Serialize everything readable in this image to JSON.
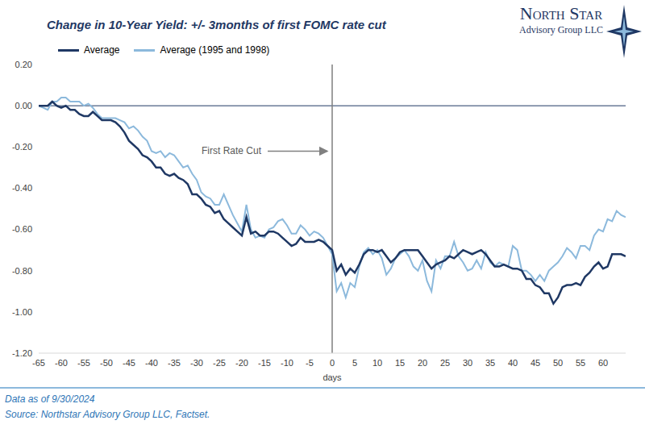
{
  "chart_data": {
    "type": "line",
    "title": "Change in 10-Year Yield: +/- 3months of first FOMC rate cut",
    "x_label": "days",
    "x": [
      -65,
      -64,
      -63,
      -62,
      -61,
      -60,
      -59,
      -58,
      -57,
      -56,
      -55,
      -54,
      -53,
      -52,
      -51,
      -50,
      -49,
      -48,
      -47,
      -46,
      -45,
      -44,
      -43,
      -42,
      -41,
      -40,
      -39,
      -38,
      -37,
      -36,
      -35,
      -34,
      -33,
      -32,
      -31,
      -30,
      -29,
      -28,
      -27,
      -26,
      -25,
      -24,
      -23,
      -22,
      -21,
      -20,
      -19,
      -18,
      -17,
      -16,
      -15,
      -14,
      -13,
      -12,
      -11,
      -10,
      -9,
      -8,
      -7,
      -6,
      -5,
      -4,
      -3,
      -2,
      -1,
      0,
      1,
      2,
      3,
      4,
      5,
      6,
      7,
      8,
      9,
      10,
      11,
      12,
      13,
      14,
      15,
      16,
      17,
      18,
      19,
      20,
      21,
      22,
      23,
      24,
      25,
      26,
      27,
      28,
      29,
      30,
      31,
      32,
      33,
      34,
      35,
      36,
      37,
      38,
      39,
      40,
      41,
      42,
      43,
      44,
      45,
      46,
      47,
      48,
      49,
      50,
      51,
      52,
      53,
      54,
      55,
      56,
      57,
      58,
      59,
      60,
      61,
      62,
      63,
      64,
      65
    ],
    "series": [
      {
        "name": "Average",
        "color": "#1f3864",
        "marker": "none",
        "line_style": "solid",
        "values": [
          0,
          0,
          0,
          0.02,
          0,
          -0.01,
          0,
          -0.02,
          -0.02,
          -0.04,
          -0.05,
          -0.05,
          -0.03,
          -0.05,
          -0.07,
          -0.07,
          -0.07,
          -0.08,
          -0.1,
          -0.13,
          -0.17,
          -0.19,
          -0.21,
          -0.24,
          -0.25,
          -0.27,
          -0.3,
          -0.3,
          -0.33,
          -0.34,
          -0.33,
          -0.35,
          -0.36,
          -0.38,
          -0.43,
          -0.43,
          -0.45,
          -0.48,
          -0.49,
          -0.52,
          -0.51,
          -0.55,
          -0.57,
          -0.59,
          -0.61,
          -0.63,
          -0.54,
          -0.62,
          -0.61,
          -0.63,
          -0.63,
          -0.61,
          -0.61,
          -0.62,
          -0.64,
          -0.66,
          -0.68,
          -0.67,
          -0.64,
          -0.66,
          -0.66,
          -0.66,
          -0.65,
          -0.66,
          -0.68,
          -0.7,
          -0.8,
          -0.77,
          -0.82,
          -0.79,
          -0.81,
          -0.77,
          -0.72,
          -0.7,
          -0.7,
          -0.71,
          -0.7,
          -0.73,
          -0.76,
          -0.74,
          -0.71,
          -0.7,
          -0.7,
          -0.7,
          -0.7,
          -0.73,
          -0.76,
          -0.79,
          -0.77,
          -0.76,
          -0.75,
          -0.73,
          -0.74,
          -0.72,
          -0.7,
          -0.71,
          -0.72,
          -0.71,
          -0.7,
          -0.72,
          -0.75,
          -0.78,
          -0.78,
          -0.77,
          -0.78,
          -0.79,
          -0.79,
          -0.8,
          -0.84,
          -0.84,
          -0.87,
          -0.88,
          -0.91,
          -0.91,
          -0.96,
          -0.93,
          -0.88,
          -0.87,
          -0.87,
          -0.86,
          -0.87,
          -0.83,
          -0.81,
          -0.78,
          -0.76,
          -0.79,
          -0.78,
          -0.72,
          -0.72,
          -0.72,
          -0.73
        ]
      },
      {
        "name": "Average (1995 and 1998)",
        "color": "#8cb9dc",
        "marker": "none",
        "line_style": "solid",
        "values": [
          0,
          -0.01,
          -0.02,
          0.02,
          0.02,
          0.04,
          0.04,
          0.02,
          0.02,
          0.02,
          0,
          0.01,
          -0.01,
          -0.04,
          -0.06,
          -0.06,
          -0.06,
          -0.06,
          -0.07,
          -0.08,
          -0.11,
          -0.1,
          -0.12,
          -0.15,
          -0.17,
          -0.22,
          -0.23,
          -0.22,
          -0.25,
          -0.23,
          -0.24,
          -0.27,
          -0.3,
          -0.29,
          -0.33,
          -0.36,
          -0.42,
          -0.44,
          -0.45,
          -0.48,
          -0.48,
          -0.43,
          -0.48,
          -0.53,
          -0.57,
          -0.61,
          -0.48,
          -0.6,
          -0.64,
          -0.63,
          -0.64,
          -0.6,
          -0.59,
          -0.56,
          -0.55,
          -0.58,
          -0.62,
          -0.62,
          -0.58,
          -0.6,
          -0.63,
          -0.61,
          -0.62,
          -0.64,
          -0.68,
          -0.72,
          -0.9,
          -0.86,
          -0.93,
          -0.86,
          -0.88,
          -0.78,
          -0.71,
          -0.69,
          -0.72,
          -0.7,
          -0.74,
          -0.82,
          -0.79,
          -0.74,
          -0.72,
          -0.7,
          -0.73,
          -0.78,
          -0.8,
          -0.75,
          -0.85,
          -0.9,
          -0.75,
          -0.79,
          -0.73,
          -0.73,
          -0.66,
          -0.73,
          -0.76,
          -0.8,
          -0.79,
          -0.75,
          -0.79,
          -0.71,
          -0.76,
          -0.78,
          -0.76,
          -0.77,
          -0.78,
          -0.68,
          -0.7,
          -0.8,
          -0.8,
          -0.82,
          -0.85,
          -0.82,
          -0.85,
          -0.8,
          -0.78,
          -0.76,
          -0.73,
          -0.69,
          -0.71,
          -0.74,
          -0.68,
          -0.68,
          -0.7,
          -0.63,
          -0.6,
          -0.61,
          -0.55,
          -0.56,
          -0.51,
          -0.53,
          -0.54
        ]
      }
    ],
    "xlim": [
      -65,
      65
    ],
    "xticks": [
      -65,
      -60,
      -55,
      -50,
      -45,
      -40,
      -35,
      -30,
      -25,
      -20,
      -15,
      -10,
      -5,
      0,
      5,
      10,
      15,
      20,
      25,
      30,
      35,
      40,
      45,
      50,
      55,
      60
    ],
    "ylim": [
      -1.2,
      0.2
    ],
    "yticks": [
      {
        "value": -1.2,
        "label": "-1.20"
      },
      {
        "value": -1,
        "label": "-1.00"
      },
      {
        "value": -0.8,
        "label": "-0.80"
      },
      {
        "value": -0.6,
        "label": "-0.60"
      },
      {
        "value": -0.4,
        "label": "-0.40"
      },
      {
        "value": -0.2,
        "label": "-0.20"
      },
      {
        "value": 0,
        "label": "0.00"
      },
      {
        "value": 0.2,
        "label": "0.20"
      }
    ],
    "grid": false,
    "legend": "top",
    "reference_lines": {
      "x": [
        0
      ],
      "y": [
        0
      ]
    },
    "annotations": [
      {
        "text": "First Rate Cut",
        "x": 0,
        "y": -0.22
      }
    ],
    "footer": [
      "Data as of 9/30/2024",
      "Source: Northstar Advisory Group LLC, Factset."
    ],
    "logo": {
      "name": "North Star",
      "subtitle": "Advisory Group LLC"
    }
  }
}
